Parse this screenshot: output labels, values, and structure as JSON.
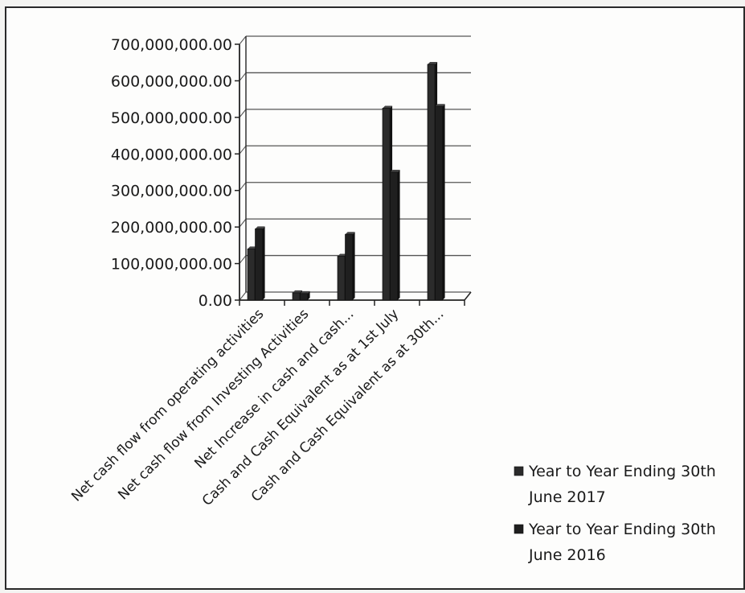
{
  "chart_data": {
    "type": "bar",
    "title": "",
    "xlabel": "",
    "ylabel": "",
    "ylim": [
      0,
      700000000
    ],
    "yticks": [
      0,
      100000000,
      200000000,
      300000000,
      400000000,
      500000000,
      600000000,
      700000000
    ],
    "ytick_labels": [
      "0.00",
      "100,000,000.00",
      "200,000,000.00",
      "300,000,000.00",
      "400,000,000.00",
      "500,000,000.00",
      "600,000,000.00",
      "700,000,000.00"
    ],
    "grid": true,
    "legend_position": "bottom-right",
    "categories": [
      "Net cash flow from operating activities",
      "Net cash flow from Investing Activities",
      "Net Increase in cash and cash...",
      "Cash and Cash Equivalent as at 1st July",
      "Cash and Cash Equivalent as at 30th..."
    ],
    "series": [
      {
        "name": "Year to Year Ending 30th June 2017",
        "legend_lines": [
          "Year to Year Ending 30th",
          "June 2017"
        ],
        "color": "#2b2b2b",
        "values": [
          140000000,
          20000000,
          120000000,
          525000000,
          645000000
        ]
      },
      {
        "name": "Year to Year Ending 30th June 2016",
        "legend_lines": [
          "Year to Year Ending 30th",
          "June 2016"
        ],
        "color": "#1f1f1f",
        "values": [
          195000000,
          18000000,
          180000000,
          350000000,
          530000000
        ]
      }
    ]
  }
}
